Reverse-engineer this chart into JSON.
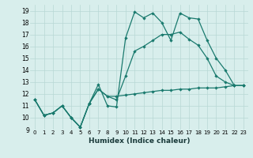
{
  "title": "",
  "xlabel": "Humidex (Indice chaleur)",
  "x_ticks": [
    0,
    1,
    2,
    3,
    4,
    5,
    6,
    7,
    8,
    9,
    10,
    11,
    12,
    13,
    14,
    15,
    16,
    17,
    18,
    19,
    20,
    21,
    22,
    23
  ],
  "ylim": [
    9,
    19.5
  ],
  "xlim": [
    -0.5,
    23.5
  ],
  "y_ticks": [
    9,
    10,
    11,
    12,
    13,
    14,
    15,
    16,
    17,
    18,
    19
  ],
  "bg_color": "#d8eeec",
  "grid_color": "#b8d8d4",
  "line_color": "#1a7a6e",
  "line1": [
    11.5,
    10.2,
    10.4,
    11.0,
    10.0,
    9.2,
    11.2,
    12.8,
    11.0,
    10.9,
    16.7,
    18.9,
    18.4,
    18.8,
    18.0,
    16.5,
    18.8,
    18.4,
    18.3,
    16.5,
    15.0,
    14.0,
    12.7,
    12.7
  ],
  "line2": [
    11.5,
    10.2,
    10.4,
    11.0,
    10.0,
    9.2,
    11.2,
    12.4,
    11.8,
    11.8,
    11.9,
    12.0,
    12.1,
    12.2,
    12.3,
    12.3,
    12.4,
    12.4,
    12.5,
    12.5,
    12.5,
    12.6,
    12.7,
    12.7
  ],
  "line3": [
    11.5,
    10.2,
    10.4,
    11.0,
    10.0,
    9.2,
    11.2,
    12.4,
    11.8,
    11.5,
    13.5,
    15.6,
    16.0,
    16.5,
    17.0,
    17.0,
    17.2,
    16.6,
    16.1,
    15.0,
    13.5,
    13.0,
    12.7,
    12.7
  ]
}
